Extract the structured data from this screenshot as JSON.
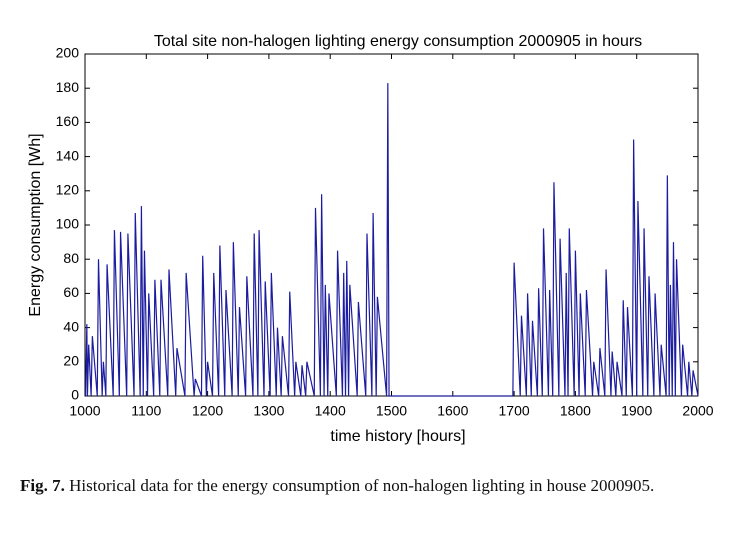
{
  "chart_data": {
    "type": "line",
    "title": "Total site non-halogen lighting energy consumption 2000905 in hours",
    "x_label": "time history [hours]",
    "y_label": "Energy consumption [Wh]",
    "xlim": [
      1000,
      2000
    ],
    "xticks": [
      1000,
      1100,
      1200,
      1300,
      1400,
      1500,
      1600,
      1700,
      1800,
      1900,
      2000
    ],
    "ylim": [
      0,
      200
    ],
    "yticks": [
      0,
      20,
      40,
      60,
      80,
      100,
      120,
      140,
      160,
      180,
      200
    ],
    "grid": false,
    "series": [
      {
        "color": "#1c1ca0",
        "x": [
          1001,
          1003,
          1004,
          1006,
          1010,
          1012,
          1020,
          1022,
          1028,
          1030,
          1034,
          1036,
          1046,
          1048,
          1056,
          1058,
          1068,
          1070,
          1080,
          1082,
          1090,
          1092,
          1095,
          1097,
          1102,
          1104,
          1112,
          1114,
          1122,
          1124,
          1135,
          1137,
          1148,
          1150,
          1163,
          1165,
          1178,
          1180,
          1190,
          1192,
          1198,
          1200,
          1208,
          1210,
          1218,
          1220,
          1228,
          1230,
          1240,
          1242,
          1250,
          1252,
          1262,
          1264,
          1274,
          1276,
          1282,
          1284,
          1292,
          1294,
          1302,
          1304,
          1312,
          1314,
          1320,
          1322,
          1332,
          1334,
          1342,
          1344,
          1352,
          1354,
          1360,
          1362,
          1374,
          1376,
          1384,
          1386,
          1390,
          1392,
          1396,
          1398,
          1410,
          1412,
          1420,
          1422,
          1425,
          1427,
          1430,
          1432,
          1444,
          1446,
          1458,
          1460,
          1468,
          1470,
          1475,
          1477,
          1492,
          1494,
          1496,
          1698,
          1700,
          1710,
          1712,
          1720,
          1722,
          1728,
          1730,
          1738,
          1740,
          1746,
          1748,
          1756,
          1758,
          1763,
          1765,
          1773,
          1775,
          1783,
          1785,
          1788,
          1790,
          1798,
          1800,
          1806,
          1808,
          1816,
          1818,
          1828,
          1830,
          1838,
          1840,
          1848,
          1850,
          1858,
          1860,
          1866,
          1868,
          1876,
          1878,
          1883,
          1885,
          1893,
          1895,
          1900,
          1902,
          1910,
          1912,
          1918,
          1920,
          1928,
          1930,
          1938,
          1940,
          1948,
          1950,
          1953,
          1955,
          1958,
          1960,
          1963,
          1965,
          1973,
          1975,
          1983,
          1985,
          1990,
          1992,
          2000
        ],
        "values": [
          0,
          42,
          0,
          30,
          0,
          35,
          0,
          80,
          0,
          20,
          0,
          77,
          0,
          97,
          0,
          96,
          0,
          95,
          0,
          107,
          0,
          111,
          0,
          85,
          0,
          60,
          0,
          68,
          0,
          68,
          0,
          74,
          0,
          28,
          0,
          72,
          0,
          10,
          0,
          82,
          0,
          20,
          0,
          72,
          0,
          88,
          0,
          62,
          0,
          90,
          0,
          52,
          0,
          70,
          0,
          95,
          0,
          97,
          0,
          67,
          0,
          72,
          0,
          40,
          0,
          35,
          0,
          61,
          0,
          20,
          0,
          18,
          0,
          20,
          0,
          110,
          0,
          118,
          0,
          65,
          0,
          60,
          0,
          85,
          0,
          72,
          0,
          79,
          0,
          65,
          0,
          55,
          0,
          95,
          0,
          107,
          0,
          58,
          0,
          183,
          0,
          0,
          78,
          0,
          47,
          0,
          60,
          0,
          44,
          0,
          63,
          0,
          98,
          0,
          62,
          0,
          125,
          0,
          92,
          0,
          72,
          0,
          98,
          0,
          85,
          0,
          60,
          0,
          62,
          0,
          20,
          0,
          28,
          0,
          74,
          0,
          26,
          0,
          20,
          0,
          56,
          0,
          52,
          0,
          150,
          0,
          114,
          0,
          98,
          0,
          70,
          0,
          60,
          0,
          30,
          0,
          129,
          0,
          65,
          0,
          90,
          0,
          80,
          0,
          30,
          0,
          20,
          0,
          15,
          0
        ]
      }
    ]
  },
  "caption": {
    "label": "Fig. 7.",
    "text": "Historical data for the energy consumption of non-halogen lighting in house 2000905."
  }
}
